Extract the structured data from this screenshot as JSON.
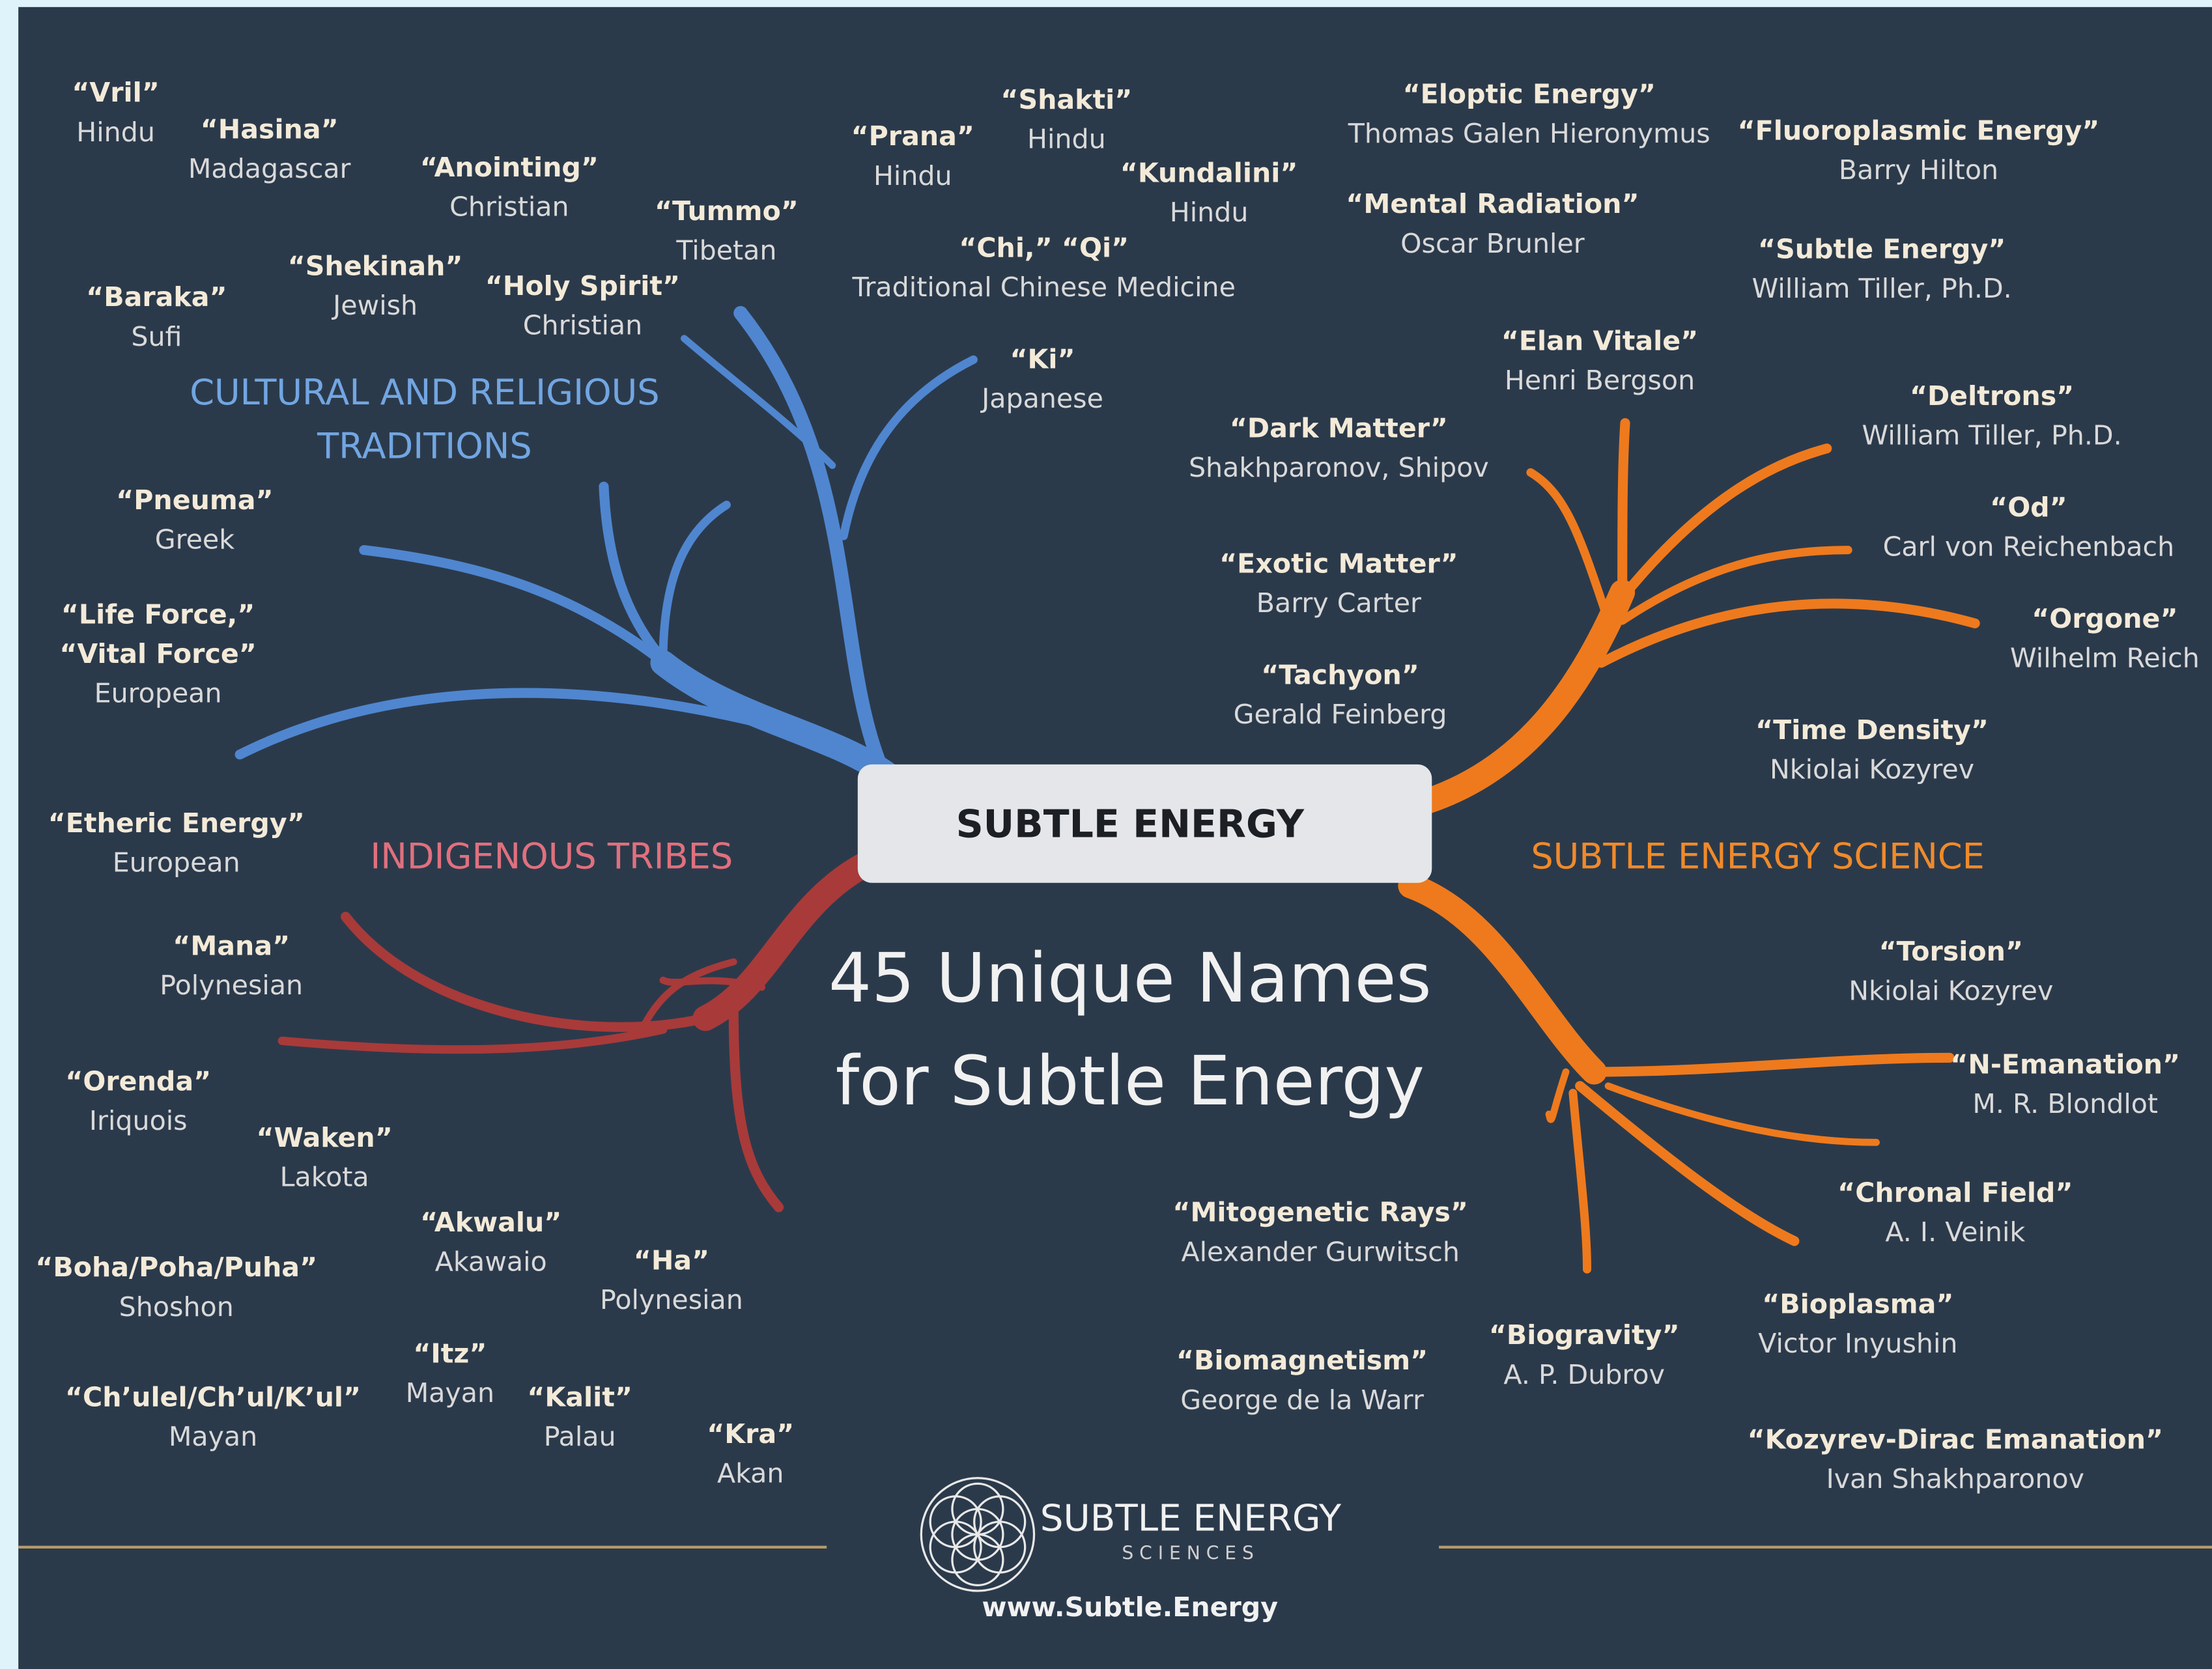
{
  "center": "SUBTLE ENERGY",
  "title": [
    "45 Unique Names",
    "for Subtle Energy"
  ],
  "sections": [
    {
      "label": [
        "CULTURAL AND RELIGIOUS",
        "TRADITIONS"
      ],
      "nodes": [
        {
          "lines": [
            "“Vril”",
            "Hindu"
          ]
        },
        {
          "lines": [
            "“Hasina”",
            "Madagascar"
          ]
        },
        {
          "lines": [
            "“Anointing”",
            "Christian"
          ]
        },
        {
          "lines": [
            "“Tummo”",
            "Tibetan"
          ]
        },
        {
          "lines": [
            "“Shekinah”",
            "Jewish"
          ]
        },
        {
          "lines": [
            "“Holy Spirit”",
            "Christian"
          ]
        },
        {
          "lines": [
            "“Baraka”",
            "Sufi"
          ]
        },
        {
          "lines": [
            "“Prana”",
            "Hindu"
          ]
        },
        {
          "lines": [
            "“Shakti”",
            "Hindu"
          ]
        },
        {
          "lines": [
            "“Kundalini”",
            "Hindu"
          ]
        },
        {
          "lines": [
            "“Chi,” “Qi”",
            "Traditional Chinese Medicine"
          ]
        },
        {
          "lines": [
            "“Ki”",
            "Japanese"
          ]
        },
        {
          "lines": [
            "“Pneuma”",
            "Greek"
          ]
        },
        {
          "lines": [
            "“Life Force,”",
            "“Vital Force”",
            "European"
          ]
        }
      ]
    },
    {
      "label": [
        "INDIGENOUS TRIBES"
      ],
      "nodes": [
        {
          "lines": [
            "“Etheric Energy”",
            "European"
          ]
        },
        {
          "lines": [
            "“Mana”",
            "Polynesian"
          ]
        },
        {
          "lines": [
            "“Orenda”",
            "Iriquois"
          ]
        },
        {
          "lines": [
            "“Waken”",
            "Lakota"
          ]
        },
        {
          "lines": [
            "“Akwalu”",
            "Akawaio"
          ]
        },
        {
          "lines": [
            "“Ha”",
            "Polynesian"
          ]
        },
        {
          "lines": [
            "“Boha/Poha/Puha”",
            "Shoshon"
          ]
        },
        {
          "lines": [
            "“Itz”",
            "Mayan"
          ]
        },
        {
          "lines": [
            "“Ch’ulel/Ch’ul/K’ul”",
            "Mayan"
          ]
        },
        {
          "lines": [
            "“Kalit”",
            "Palau"
          ]
        },
        {
          "lines": [
            "“Kra”",
            "Akan"
          ]
        }
      ]
    },
    {
      "label": [
        "SUBTLE ENERGY SCIENCE"
      ],
      "nodes": [
        {
          "lines": [
            "“Eloptic Energy”",
            "Thomas Galen Hieronymus"
          ]
        },
        {
          "lines": [
            "“Fluoroplasmic Energy”",
            "Barry Hilton"
          ]
        },
        {
          "lines": [
            "“Mental Radiation”",
            "Oscar Brunler"
          ]
        },
        {
          "lines": [
            "“Subtle Energy”",
            "William Tiller, Ph.D."
          ]
        },
        {
          "lines": [
            "“Elan Vitale”",
            "Henri Bergson"
          ]
        },
        {
          "lines": [
            "“Deltrons”",
            "William Tiller, Ph.D."
          ]
        },
        {
          "lines": [
            "“Dark Matter”",
            "Shakhparonov, Shipov"
          ]
        },
        {
          "lines": [
            "“Od”",
            "Carl von Reichenbach"
          ]
        },
        {
          "lines": [
            "“Exotic Matter”",
            "Barry Carter"
          ]
        },
        {
          "lines": [
            "“Orgone”",
            "Wilhelm Reich"
          ]
        },
        {
          "lines": [
            "“Tachyon”",
            "Gerald Feinberg"
          ]
        },
        {
          "lines": [
            "“Time Density”",
            "Nkiolai Kozyrev"
          ]
        },
        {
          "lines": [
            "“Torsion”",
            "Nkiolai Kozyrev"
          ]
        },
        {
          "lines": [
            "“N-Emanation”",
            "M. R. Blondlot"
          ]
        },
        {
          "lines": [
            "“Chronal Field”",
            "A. I. Veinik"
          ]
        },
        {
          "lines": [
            "“Mitogenetic Rays”",
            "Alexander Gurwitsch"
          ]
        },
        {
          "lines": [
            "“Bioplasma”",
            "Victor Inyushin"
          ]
        },
        {
          "lines": [
            "“Biogravity”",
            "A. P. Dubrov"
          ]
        },
        {
          "lines": [
            "“Biomagnetism”",
            "George de la Warr"
          ]
        },
        {
          "lines": [
            "“Kozyrev-Dirac Emanation”",
            "Ivan Shakhparonov"
          ]
        }
      ]
    }
  ],
  "footer": {
    "brand": "SUBTLE ENERGY",
    "sub": "S C I E N C E S",
    "url": "www.Subtle.Energy"
  }
}
